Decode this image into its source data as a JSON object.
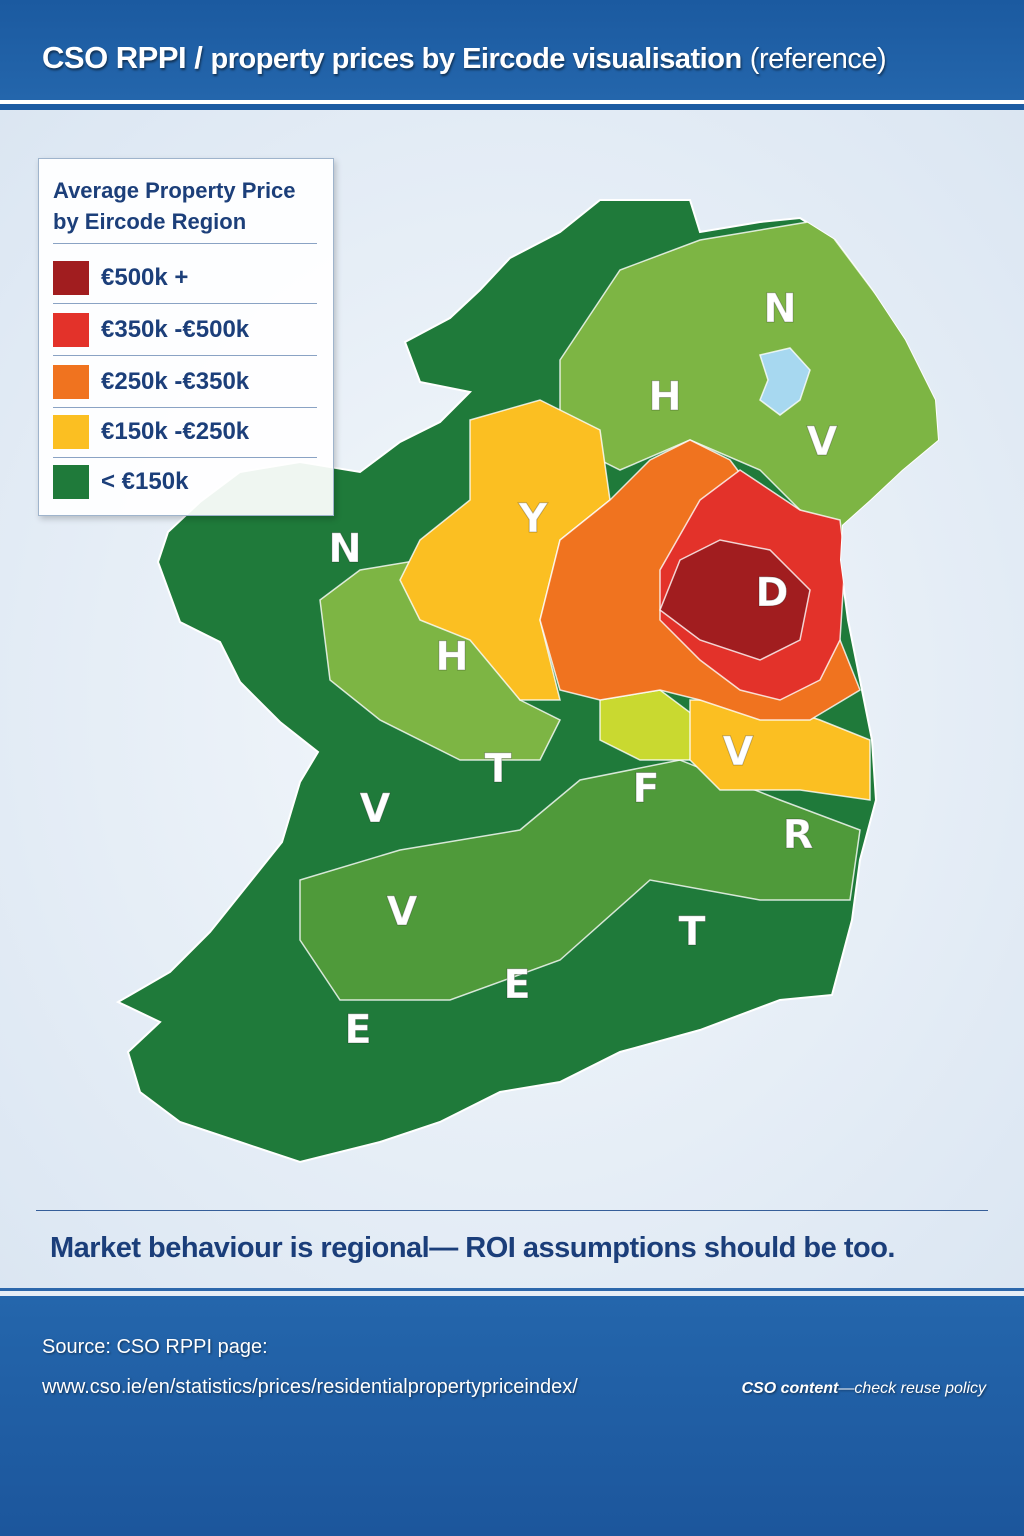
{
  "header": {
    "title_main": "CSO RPPI / ",
    "title_sub": "property prices by Eircode visualisation",
    "title_ref": "(reference)"
  },
  "legend": {
    "title": "Average Property Price by Eircode Region",
    "items": [
      {
        "label": "€500k +",
        "color": "#a11d1f"
      },
      {
        "label": "€350k -€500k",
        "color": "#e3322a"
      },
      {
        "label": "€250k -€350k",
        "color": "#f0731f"
      },
      {
        "label": "€150k -€250k",
        "color": "#fbbf22"
      },
      {
        "label": "< €150k",
        "color": "#1f7a3a"
      }
    ]
  },
  "map": {
    "colors": {
      "land_dark_green": "#1f7a3a",
      "land_mid_green": "#4f9a3a",
      "land_light_green": "#7db544",
      "lime": "#b5cc38",
      "yellow": "#fbbf22",
      "orange": "#f0731f",
      "red": "#e3322a",
      "dark_red": "#a11d1f",
      "lake": "#a7d8f0"
    },
    "region_labels": [
      "N",
      "H",
      "V",
      "Y",
      "D",
      "N",
      "H",
      "T",
      "V",
      "F",
      "V",
      "R",
      "V",
      "T",
      "E",
      "E"
    ]
  },
  "tagline": "Market behaviour is regional— ROI assumptions should be too.",
  "footer": {
    "source_label": "Source: CSO RPPI page:",
    "source_url": "www.cso.ie/en/statistics/prices/residentialpropertypriceindex/",
    "reuse_bold": "CSO content",
    "reuse_rest": "—check reuse policy"
  }
}
